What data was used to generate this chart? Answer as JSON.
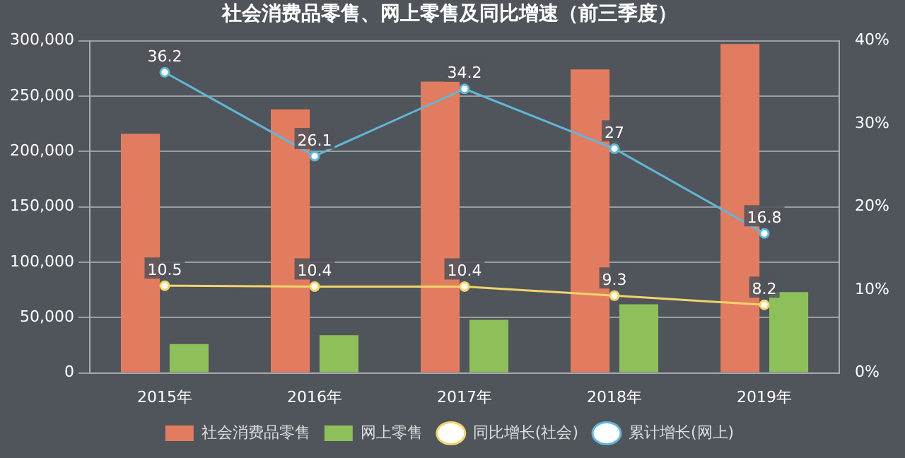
{
  "chart_data": {
    "type": "bar",
    "title": "社会消费品零售、网上零售及同比增速（前三季度）",
    "categories": [
      "2015年",
      "2016年",
      "2017年",
      "2018年",
      "2019年"
    ],
    "series": [
      {
        "name": "社会消费品零售",
        "color": "#e27c60",
        "values": [
          216000,
          238000,
          263000,
          274000,
          297000
        ]
      },
      {
        "name": "网上零售",
        "color": "#8dbf5b",
        "values": [
          26000,
          34000,
          48000,
          62000,
          73000
        ]
      },
      {
        "name": "同比增长(社会)",
        "type": "line",
        "axis": "y2",
        "color": "#f2d46a",
        "values": [
          10.5,
          10.4,
          10.4,
          9.3,
          8.2
        ],
        "value_labels": [
          "10.5",
          "10.4",
          "10.4",
          "9.3",
          "8.2"
        ]
      },
      {
        "name": "累计增长(网上)",
        "type": "line",
        "axis": "y2",
        "color": "#62b6d6",
        "values": [
          36.2,
          26.1,
          34.2,
          27,
          16.8
        ],
        "value_labels": [
          "36.2",
          "26.1",
          "34.2",
          "27",
          "16.8"
        ]
      }
    ],
    "ylim": [
      0,
      300000
    ],
    "yticks": [
      {
        "value": 0,
        "label": "0"
      },
      {
        "value": 50000,
        "label": "50,000"
      },
      {
        "value": 100000,
        "label": "100,000"
      },
      {
        "value": 150000,
        "label": "150,000"
      },
      {
        "value": 200000,
        "label": "200,000"
      },
      {
        "value": 250000,
        "label": "250,000"
      },
      {
        "value": 300000,
        "label": "300,000"
      }
    ],
    "y2lim": [
      0,
      40
    ],
    "y2ticks": [
      {
        "value": 0,
        "label": "0%"
      },
      {
        "value": 10,
        "label": "10%"
      },
      {
        "value": 20,
        "label": "20%"
      },
      {
        "value": 30,
        "label": "30%"
      },
      {
        "value": 40,
        "label": "40%"
      }
    ],
    "grid": "y",
    "legend": "bottom",
    "marker": "circle"
  }
}
